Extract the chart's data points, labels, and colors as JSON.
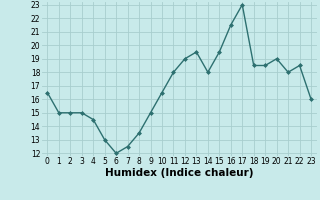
{
  "x": [
    0,
    1,
    2,
    3,
    4,
    5,
    6,
    7,
    8,
    9,
    10,
    11,
    12,
    13,
    14,
    15,
    16,
    17,
    18,
    19,
    20,
    21,
    22,
    23
  ],
  "y": [
    16.5,
    15,
    15,
    15,
    14.5,
    13,
    12,
    12.5,
    13.5,
    15,
    16.5,
    18,
    19,
    19.5,
    18,
    19.5,
    21.5,
    23,
    18.5,
    18.5,
    19,
    18,
    18.5,
    16
  ],
  "line_color": "#2d7070",
  "marker": "D",
  "marker_size": 2,
  "bg_color": "#c8eaea",
  "grid_color": "#a8cece",
  "xlabel": "Humidex (Indice chaleur)",
  "ylim": [
    12,
    23
  ],
  "xlim": [
    -0.5,
    23.5
  ],
  "yticks": [
    12,
    13,
    14,
    15,
    16,
    17,
    18,
    19,
    20,
    21,
    22,
    23
  ],
  "xticks": [
    0,
    1,
    2,
    3,
    4,
    5,
    6,
    7,
    8,
    9,
    10,
    11,
    12,
    13,
    14,
    15,
    16,
    17,
    18,
    19,
    20,
    21,
    22,
    23
  ],
  "tick_label_fontsize": 5.5,
  "xlabel_fontsize": 7.5,
  "linewidth": 1.0
}
